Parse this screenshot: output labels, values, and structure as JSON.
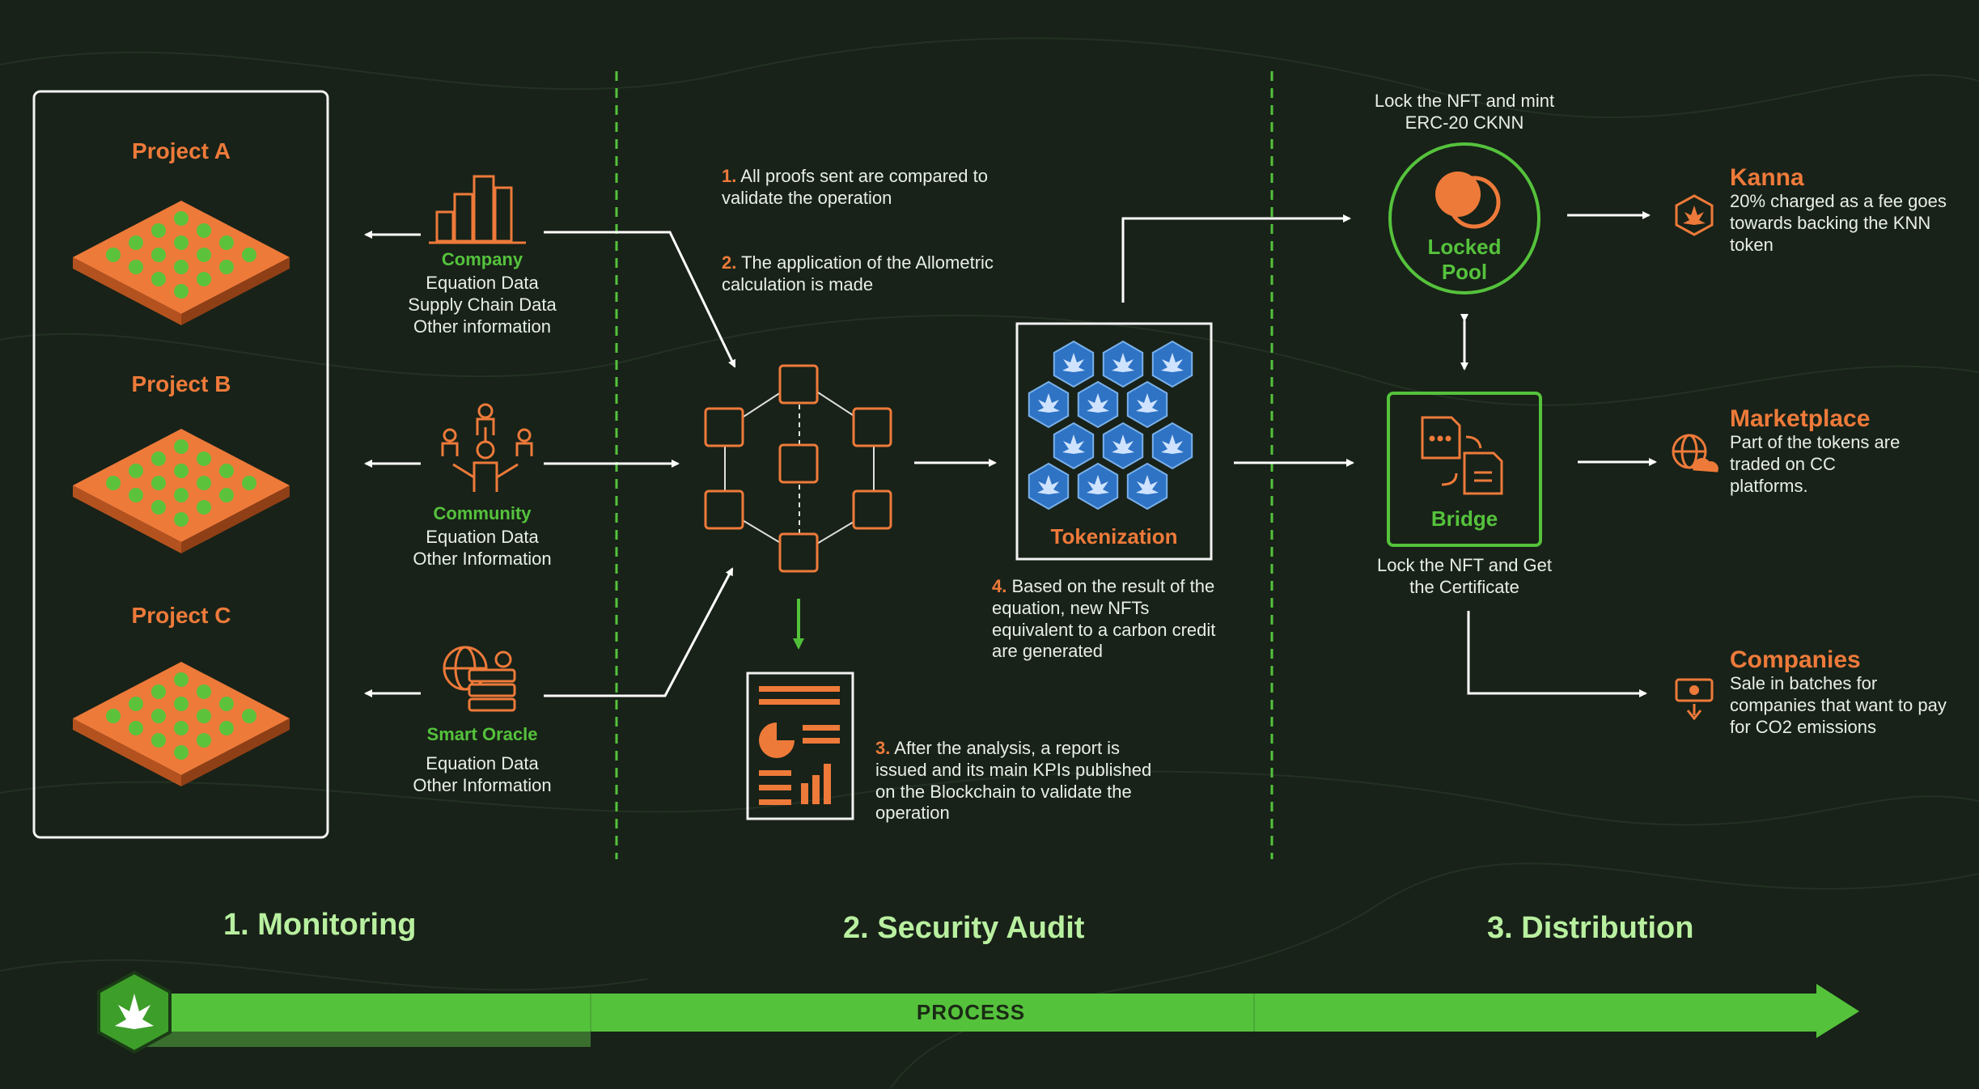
{
  "colors": {
    "background": "#182218",
    "accent_orange": "#ee7a3a",
    "accent_green": "#55c23c",
    "light_green_text": "#b9f0a0",
    "hex_blue": "#2e73c4",
    "text_white": "#e9eee7"
  },
  "monitoring": {
    "projects": [
      "Project A",
      "Project B",
      "Project C"
    ],
    "sources": [
      {
        "icon": "city-buildings-icon",
        "title": "Company",
        "info": [
          "Equation Data",
          "Supply Chain Data",
          "Other information"
        ]
      },
      {
        "icon": "community-people-icon",
        "title": "Community",
        "info": [
          "Equation Data",
          "Other Information"
        ]
      },
      {
        "icon": "globe-server-gear-icon",
        "title": "Smart Oracle",
        "info": [
          "Equation Data",
          "Other Information"
        ]
      }
    ]
  },
  "audit": {
    "step1": {
      "num": "1.",
      "text": "All proofs sent are compared to validate the operation"
    },
    "step2": {
      "num": "2.",
      "text": "The application of the Allometric calculation is made"
    },
    "step3": {
      "num": "3.",
      "text": "After the analysis, a report is issued and its main KPIs published on the Blockchain to validate the operation"
    },
    "step4": {
      "num": "4.",
      "text": "Based on the result of the equation, new NFTs equivalent to a carbon credit are generated"
    },
    "tokenization_label": "Tokenization"
  },
  "distribution": {
    "lock_mint_text": "Lock the NFT and mint ERC-20 CKNN",
    "locked_pool": {
      "line1": "Locked",
      "line2": "Pool"
    },
    "bridge_label": "Bridge",
    "bridge_caption": "Lock the NFT and Get the Certificate",
    "destinations": [
      {
        "icon": "kanna-leaf-hex-icon",
        "title": "Kanna",
        "desc": "20% charged as a fee goes towards backing the KNN token"
      },
      {
        "icon": "globe-cloud-icon",
        "title": "Marketplace",
        "desc": "Part of the tokens are traded on CC platforms."
      },
      {
        "icon": "money-bill-arrow-icon",
        "title": "Companies",
        "desc": "Sale in batches for companies that want to pay for CO2 emissions"
      }
    ]
  },
  "phases": [
    "1. Monitoring",
    "2. Security Audit",
    "3. Distribution"
  ],
  "process_label": "PROCESS"
}
